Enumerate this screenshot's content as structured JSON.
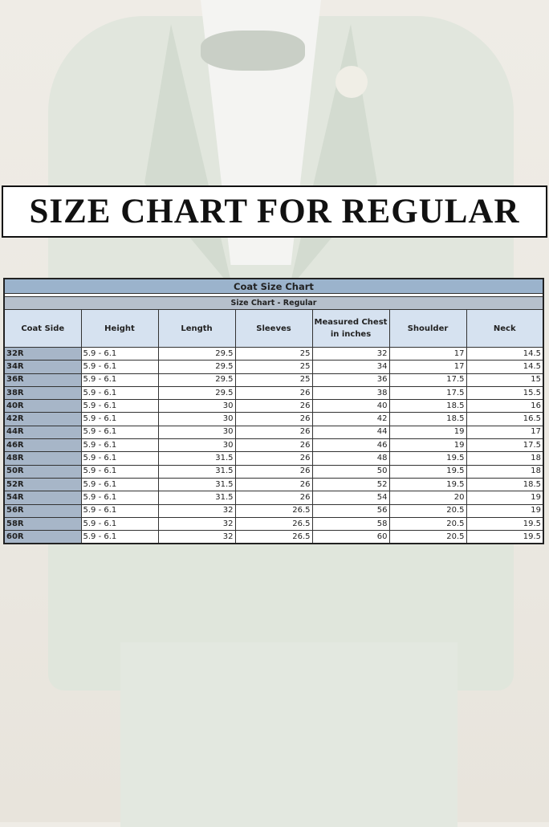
{
  "title": "SIZE CHART FOR REGULAR",
  "table": {
    "title": "Coat Size Chart",
    "subtitle": "Size Chart - Regular",
    "headers": [
      "Coat Side",
      "Height",
      "Length",
      "Sleeves",
      "Measured Chest in inches",
      "Shoulder",
      "Neck"
    ],
    "rows": [
      [
        "32R",
        "5.9 - 6.1",
        "29.5",
        "25",
        "32",
        "17",
        "14.5"
      ],
      [
        "34R",
        "5.9 - 6.1",
        "29.5",
        "25",
        "34",
        "17",
        "14.5"
      ],
      [
        "36R",
        "5.9 - 6.1",
        "29.5",
        "25",
        "36",
        "17.5",
        "15"
      ],
      [
        "38R",
        "5.9 - 6.1",
        "29.5",
        "26",
        "38",
        "17.5",
        "15.5"
      ],
      [
        "40R",
        "5.9 - 6.1",
        "30",
        "26",
        "40",
        "18.5",
        "16"
      ],
      [
        "42R",
        "5.9 - 6.1",
        "30",
        "26",
        "42",
        "18.5",
        "16.5"
      ],
      [
        "44R",
        "5.9 - 6.1",
        "30",
        "26",
        "44",
        "19",
        "17"
      ],
      [
        "46R",
        "5.9 - 6.1",
        "30",
        "26",
        "46",
        "19",
        "17.5"
      ],
      [
        "48R",
        "5.9 - 6.1",
        "31.5",
        "26",
        "48",
        "19.5",
        "18"
      ],
      [
        "50R",
        "5.9 - 6.1",
        "31.5",
        "26",
        "50",
        "19.5",
        "18"
      ],
      [
        "52R",
        "5.9 - 6.1",
        "31.5",
        "26",
        "52",
        "19.5",
        "18.5"
      ],
      [
        "54R",
        "5.9 - 6.1",
        "31.5",
        "26",
        "54",
        "20",
        "19"
      ],
      [
        "56R",
        "5.9 - 6.1",
        "32",
        "26.5",
        "56",
        "20.5",
        "19"
      ],
      [
        "58R",
        "5.9 - 6.1",
        "32",
        "26.5",
        "58",
        "20.5",
        "19.5"
      ],
      [
        "60R",
        "5.9 - 6.1",
        "32",
        "26.5",
        "60",
        "20.5",
        "19.5"
      ]
    ]
  },
  "colors": {
    "title_bar": "#9bb3cc",
    "subtitle_bar": "#b6c0cc",
    "header_bg": "#d6e2f0",
    "size_col": "#a7b6c8"
  }
}
